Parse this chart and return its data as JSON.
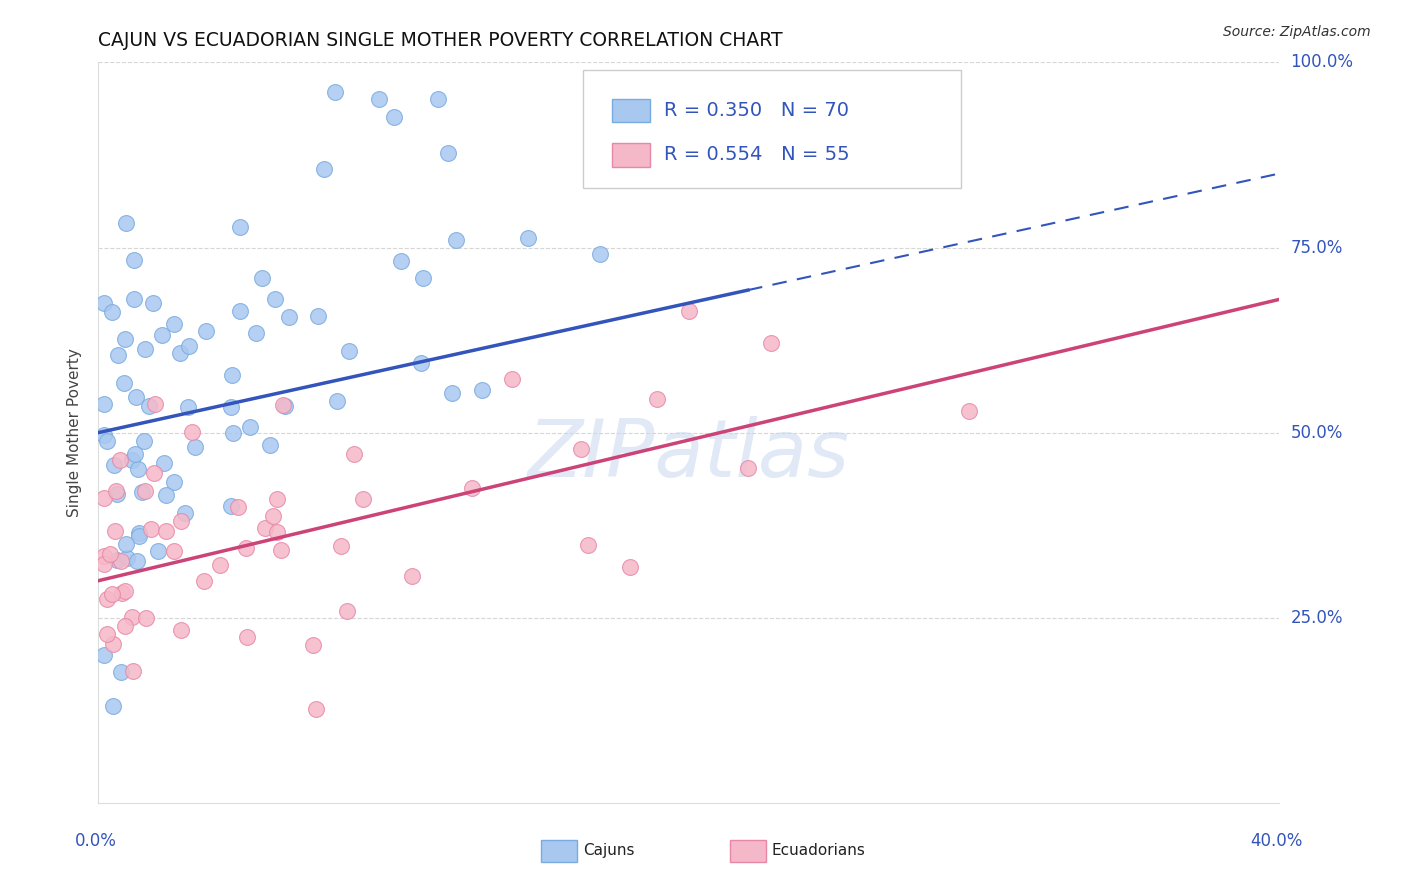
{
  "title": "CAJUN VS ECUADORIAN SINGLE MOTHER POVERTY CORRELATION CHART",
  "source": "Source: ZipAtlas.com",
  "ylabel": "Single Mother Poverty",
  "cajun_color": "#a8c8f0",
  "cajun_edge_color": "#7aabdf",
  "ecuadorian_color": "#f5b8c8",
  "ecuadorian_edge_color": "#e888a8",
  "line_cajun_color": "#3355bb",
  "line_ecuadorian_color": "#cc4477",
  "background_color": "#ffffff",
  "grid_color": "#cccccc",
  "xlim": [
    0,
    40
  ],
  "ylim": [
    0,
    100
  ],
  "cajun_line_y0": 50,
  "cajun_line_y1": 85,
  "cajun_solid_x_end": 22,
  "ecuadorian_line_y0": 30,
  "ecuadorian_line_y1": 68,
  "ytick_positions": [
    25,
    50,
    75,
    100
  ],
  "ytick_labels": [
    "25.0%",
    "50.0%",
    "75.0%",
    "100.0%"
  ],
  "legend_cajun_R": "R = 0.350",
  "legend_cajun_N": "N = 70",
  "legend_ecua_R": "R = 0.554",
  "legend_ecua_N": "N = 55",
  "watermark": "ZIPatlas",
  "bottom_label_cajun": "Cajuns",
  "bottom_label_ecua": "Ecuadorians"
}
